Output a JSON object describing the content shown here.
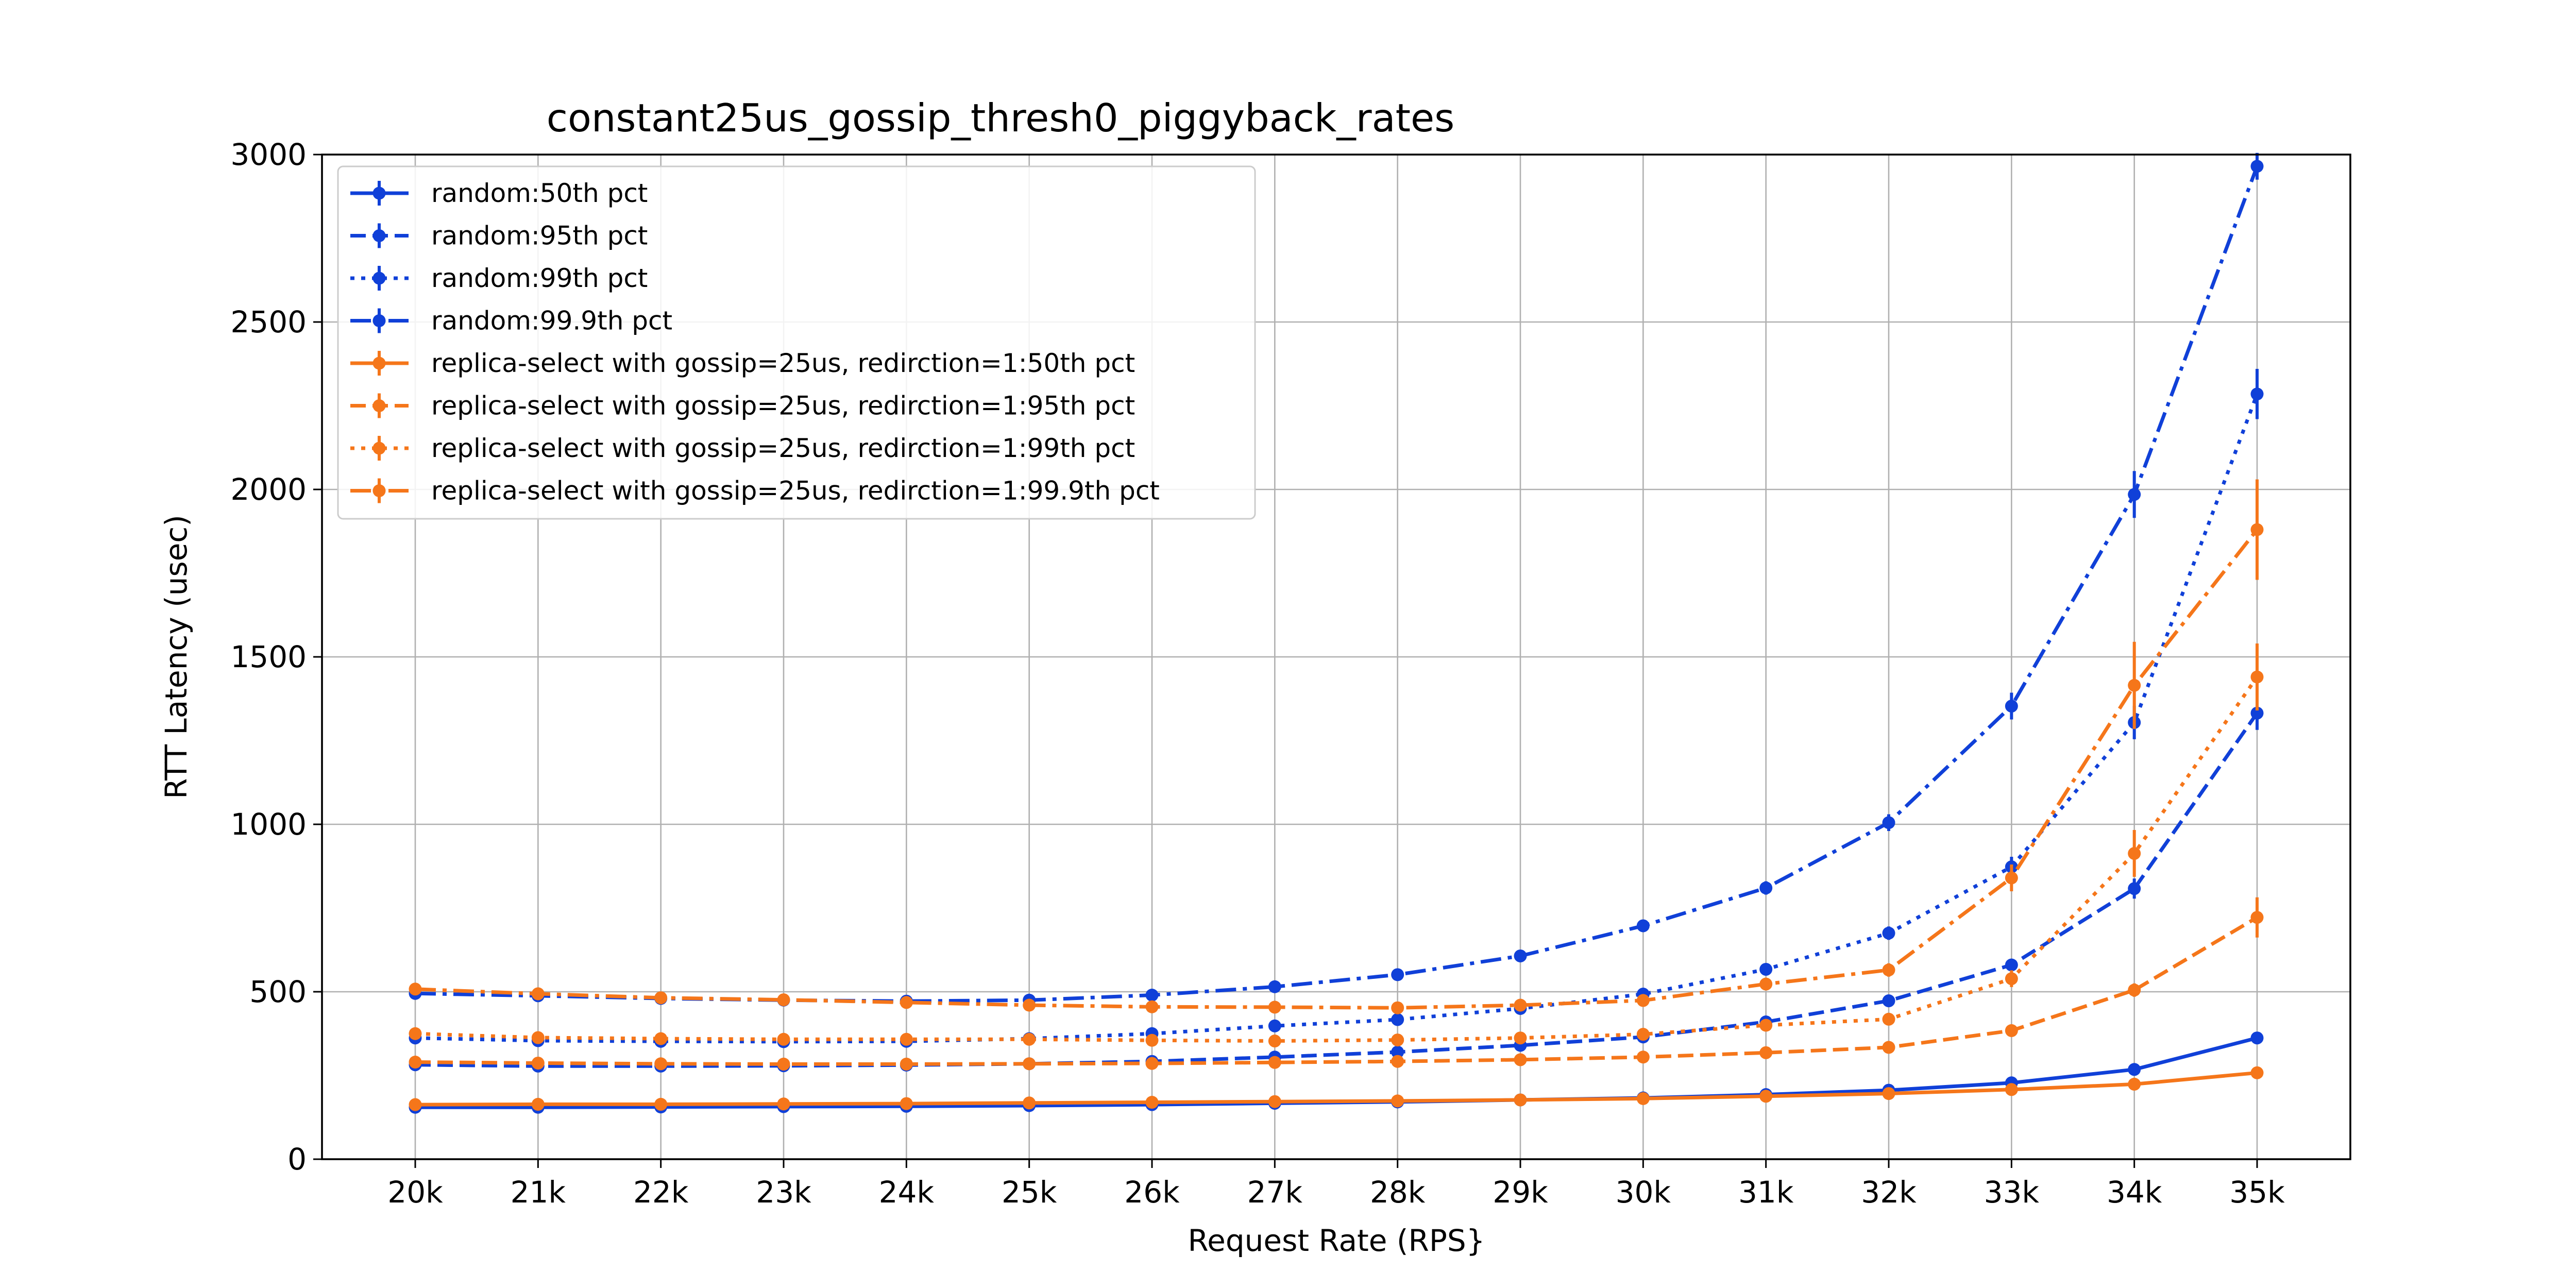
{
  "chart_data": {
    "type": "line",
    "title": "constant25us_gossip_thresh0_piggyback_rates",
    "xlabel": "Request Rate (RPS}",
    "ylabel": "RTT Latency (usec)",
    "categories": [
      "20k",
      "21k",
      "22k",
      "23k",
      "24k",
      "25k",
      "26k",
      "27k",
      "28k",
      "29k",
      "30k",
      "31k",
      "32k",
      "33k",
      "34k",
      "35k"
    ],
    "ylim": [
      0,
      3000
    ],
    "yticks": [
      0,
      500,
      1000,
      1500,
      2000,
      2500,
      3000
    ],
    "grid": true,
    "legend_position": "top-left",
    "colors": {
      "random": "#1040d8",
      "replica": "#f5761a"
    },
    "series": [
      {
        "name": "random:50th pct",
        "group": "random",
        "style": "solid",
        "values": [
          155,
          155,
          156,
          157,
          158,
          160,
          163,
          167,
          171,
          177,
          183,
          193,
          206,
          228,
          268,
          362
        ],
        "errors": [
          3,
          3,
          3,
          3,
          3,
          3,
          3,
          3,
          3,
          3,
          4,
          4,
          5,
          6,
          8,
          12
        ]
      },
      {
        "name": "random:95th pct",
        "group": "random",
        "style": "dashed",
        "values": [
          282,
          278,
          278,
          279,
          281,
          285,
          292,
          305,
          320,
          340,
          365,
          410,
          473,
          580,
          808,
          1332
        ],
        "errors": [
          5,
          5,
          5,
          5,
          5,
          5,
          5,
          6,
          6,
          7,
          8,
          10,
          12,
          18,
          30,
          50
        ]
      },
      {
        "name": "random:99th pct",
        "group": "random",
        "style": "dotted",
        "values": [
          362,
          354,
          352,
          351,
          352,
          360,
          375,
          398,
          417,
          450,
          493,
          567,
          675,
          873,
          1304,
          2285
        ],
        "errors": [
          6,
          6,
          6,
          6,
          6,
          6,
          7,
          7,
          8,
          10,
          12,
          15,
          20,
          30,
          50,
          75
        ]
      },
      {
        "name": "random:99.9th pct",
        "group": "random",
        "style": "dashdot",
        "values": [
          495,
          488,
          480,
          475,
          472,
          475,
          490,
          515,
          551,
          607,
          697,
          810,
          1005,
          1353,
          1985,
          2965
        ],
        "errors": [
          8,
          8,
          8,
          8,
          8,
          8,
          8,
          10,
          12,
          15,
          18,
          20,
          25,
          40,
          70,
          40
        ]
      },
      {
        "name": "replica-select with gossip=25us, redirction=1:50th pct",
        "group": "replica",
        "style": "solid",
        "values": [
          163,
          164,
          164,
          165,
          166,
          168,
          170,
          172,
          174,
          177,
          181,
          188,
          196,
          208,
          224,
          258
        ],
        "errors": [
          3,
          3,
          3,
          3,
          3,
          3,
          3,
          3,
          3,
          3,
          3,
          4,
          4,
          5,
          6,
          8
        ]
      },
      {
        "name": "replica-select with gossip=25us, redirction=1:95th pct",
        "group": "replica",
        "style": "dashed",
        "values": [
          290,
          287,
          285,
          284,
          284,
          285,
          286,
          289,
          292,
          297,
          305,
          318,
          334,
          384,
          505,
          722
        ],
        "errors": [
          5,
          5,
          5,
          5,
          5,
          5,
          5,
          5,
          5,
          6,
          6,
          7,
          8,
          12,
          20,
          60
        ]
      },
      {
        "name": "replica-select with gossip=25us, redirction=1:99th pct",
        "group": "replica",
        "style": "dotted",
        "values": [
          375,
          363,
          360,
          358,
          358,
          358,
          355,
          353,
          356,
          362,
          373,
          400,
          418,
          539,
          913,
          1440
        ],
        "errors": [
          6,
          6,
          6,
          6,
          6,
          6,
          6,
          6,
          6,
          7,
          8,
          10,
          14,
          25,
          70,
          100
        ]
      },
      {
        "name": "replica-select with gossip=25us, redirction=1:99.9th pct",
        "group": "replica",
        "style": "dashdot",
        "values": [
          508,
          494,
          482,
          476,
          468,
          460,
          455,
          454,
          452,
          460,
          474,
          523,
          565,
          840,
          1415,
          1880
        ],
        "errors": [
          8,
          8,
          8,
          8,
          8,
          8,
          8,
          8,
          8,
          8,
          10,
          14,
          20,
          40,
          130,
          150
        ]
      }
    ]
  }
}
